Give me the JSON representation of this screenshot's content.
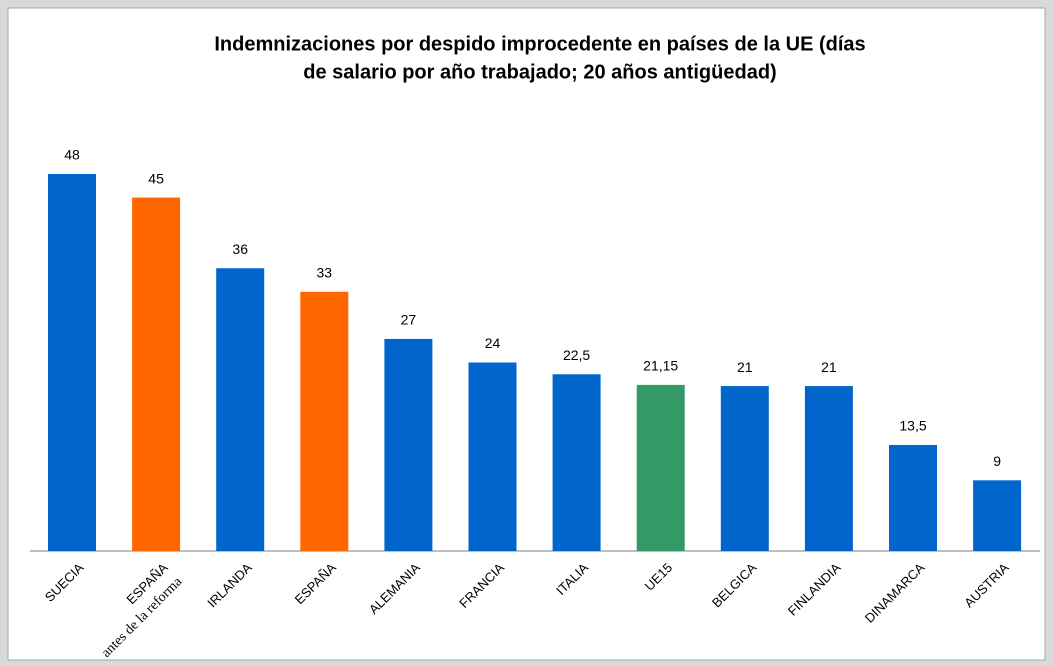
{
  "chart_data": {
    "type": "bar",
    "title": [
      "Indemnizaciones por despido improcedente en países de la UE (días",
      "de salario por año trabajado; 20 años antigüedad)"
    ],
    "categories": [
      "SUECIA",
      [
        "ESPAÑA",
        "antes de la reforma"
      ],
      "IRLANDA",
      "ESPAÑA",
      "ALEMANIA",
      "FRANCIA",
      "ITALIA",
      "UE15",
      "BELGICA",
      "FINLANDIA",
      "DINAMARCA",
      "AUSTRIA"
    ],
    "values": [
      48,
      45,
      36,
      33,
      27,
      24,
      22.5,
      21.15,
      21,
      21,
      13.5,
      9
    ],
    "value_labels": [
      "48",
      "45",
      "36",
      "33",
      "27",
      "24",
      "22,5",
      "21,15",
      "21",
      "21",
      "13,5",
      "9"
    ],
    "colors": [
      "#0066cc",
      "#ff6600",
      "#0066cc",
      "#ff6600",
      "#0066cc",
      "#0066cc",
      "#0066cc",
      "#339966",
      "#0066cc",
      "#0066cc",
      "#0066cc",
      "#0066cc"
    ]
  }
}
